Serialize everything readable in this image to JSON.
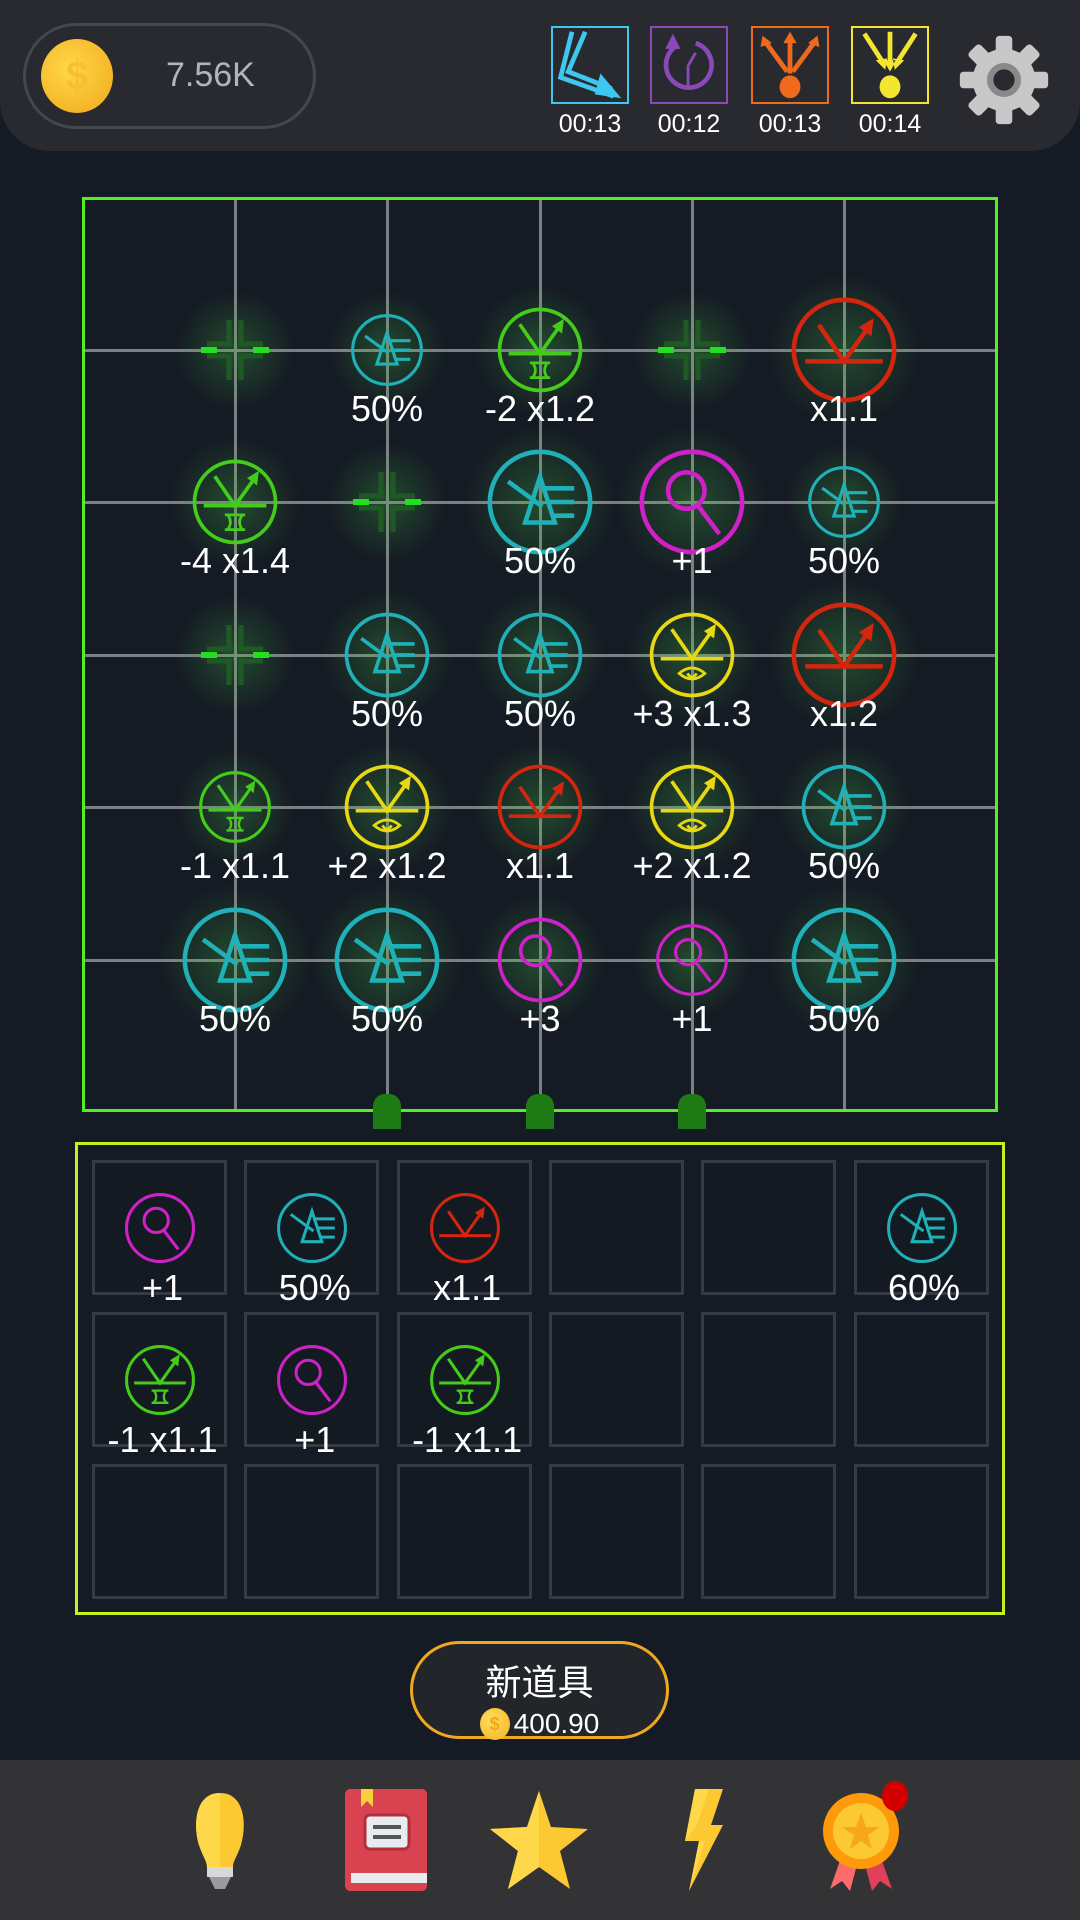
{
  "header": {
    "coins": "7.56K",
    "boosters": [
      {
        "name": "lightning-multi",
        "icon": "lightning-arrows-icon",
        "color": "#3ec8f0",
        "timer": "00:13"
      },
      {
        "name": "time-rewind",
        "icon": "rewind-clock-icon",
        "color": "#8a48b8",
        "timer": "00:12"
      },
      {
        "name": "split-arrows",
        "icon": "split-arrows-icon",
        "color": "#f06a1e",
        "timer": "00:13"
      },
      {
        "name": "converge-arrows",
        "icon": "converge-arrows-icon",
        "color": "#f2e630",
        "timer": "00:14"
      }
    ],
    "settings_icon": "gear-icon"
  },
  "colors": {
    "prism": "#1fb0b8",
    "reflector_lens": "#44cc1a",
    "reflector": "#d4260f",
    "reflector_eye": "#e8d812",
    "magnifier": "#d020c8",
    "grid_border": "#55ee22",
    "inventory_border": "#c8f020"
  },
  "board": {
    "nodes": [
      {
        "row": 0,
        "col": 0,
        "type": "empty",
        "label": ""
      },
      {
        "row": 0,
        "col": 1,
        "type": "prism",
        "size": "small",
        "label": "50%"
      },
      {
        "row": 0,
        "col": 2,
        "type": "reflector_lens",
        "size": "medium",
        "label": "-2 x1.2"
      },
      {
        "row": 0,
        "col": 3,
        "type": "empty",
        "label": ""
      },
      {
        "row": 0,
        "col": 4,
        "type": "reflector",
        "size": "large",
        "label": "x1.1"
      },
      {
        "row": 1,
        "col": 0,
        "type": "reflector_lens",
        "size": "medium",
        "label": "-4 x1.4"
      },
      {
        "row": 1,
        "col": 1,
        "type": "empty",
        "label": ""
      },
      {
        "row": 1,
        "col": 2,
        "type": "prism",
        "size": "large",
        "label": "50%"
      },
      {
        "row": 1,
        "col": 3,
        "type": "magnifier",
        "size": "large",
        "label": "+1"
      },
      {
        "row": 1,
        "col": 4,
        "type": "prism",
        "size": "small",
        "label": "50%"
      },
      {
        "row": 2,
        "col": 0,
        "type": "empty",
        "label": ""
      },
      {
        "row": 2,
        "col": 1,
        "type": "prism",
        "size": "medium",
        "label": "50%"
      },
      {
        "row": 2,
        "col": 2,
        "type": "prism",
        "size": "medium",
        "label": "50%"
      },
      {
        "row": 2,
        "col": 3,
        "type": "reflector_eye",
        "size": "medium",
        "label": "+3 x1.3"
      },
      {
        "row": 2,
        "col": 4,
        "type": "reflector",
        "size": "large",
        "label": "x1.2"
      },
      {
        "row": 3,
        "col": 0,
        "type": "reflector_lens",
        "size": "small",
        "label": "-1 x1.1"
      },
      {
        "row": 3,
        "col": 1,
        "type": "reflector_eye",
        "size": "medium",
        "label": "+2 x1.2"
      },
      {
        "row": 3,
        "col": 2,
        "type": "reflector",
        "size": "medium",
        "label": "x1.1"
      },
      {
        "row": 3,
        "col": 3,
        "type": "reflector_eye",
        "size": "medium",
        "label": "+2 x1.2"
      },
      {
        "row": 3,
        "col": 4,
        "type": "prism",
        "size": "medium",
        "label": "50%"
      },
      {
        "row": 4,
        "col": 0,
        "type": "prism",
        "size": "large",
        "label": "50%"
      },
      {
        "row": 4,
        "col": 1,
        "type": "prism",
        "size": "large",
        "label": "50%"
      },
      {
        "row": 4,
        "col": 2,
        "type": "magnifier",
        "size": "medium",
        "label": "+3"
      },
      {
        "row": 4,
        "col": 3,
        "type": "magnifier",
        "size": "small",
        "label": "+1"
      },
      {
        "row": 4,
        "col": 4,
        "type": "prism",
        "size": "large",
        "label": "50%"
      }
    ],
    "emitter_columns": [
      1,
      2,
      3
    ]
  },
  "inventory": {
    "columns": 6,
    "rows": 3,
    "items": [
      {
        "slot": 0,
        "type": "magnifier",
        "label": "+1"
      },
      {
        "slot": 1,
        "type": "prism",
        "label": "50%"
      },
      {
        "slot": 2,
        "type": "reflector",
        "label": "x1.1"
      },
      {
        "slot": 5,
        "type": "prism",
        "label": "60%"
      },
      {
        "slot": 6,
        "type": "reflector_lens",
        "label": "-1 x1.1"
      },
      {
        "slot": 7,
        "type": "magnifier",
        "label": "+1"
      },
      {
        "slot": 8,
        "type": "reflector_lens",
        "label": "-1 x1.1"
      }
    ]
  },
  "new_item_button": {
    "label": "新道具",
    "price": "400.90"
  },
  "bottom_nav": [
    {
      "name": "hints",
      "icon": "lightbulb-icon"
    },
    {
      "name": "guide",
      "icon": "book-icon"
    },
    {
      "name": "favorites",
      "icon": "star-icon"
    },
    {
      "name": "boost",
      "icon": "lightning-icon"
    },
    {
      "name": "achievements",
      "icon": "medal-icon",
      "badge": true
    }
  ]
}
